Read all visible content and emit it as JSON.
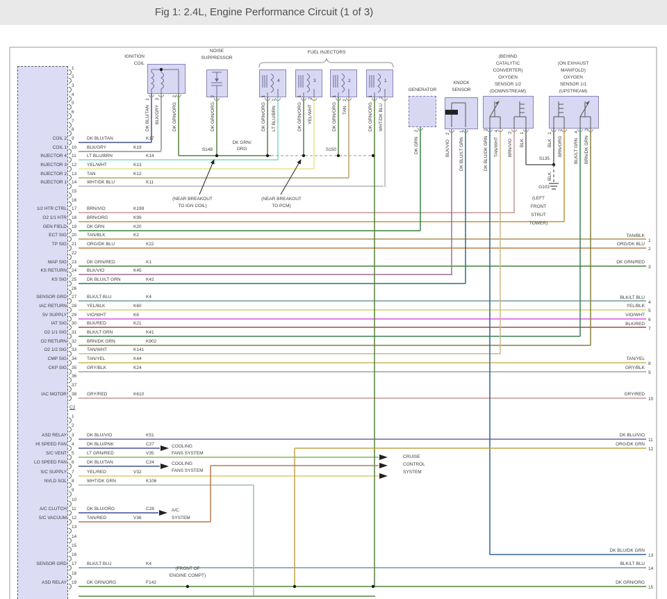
{
  "header": {
    "title": "Fig 1: 2.4L, Engine Performance Circuit (1 of 3)"
  },
  "colors": {
    "DK BLU/TAN": "#44518a",
    "BLK/GRY": "#8c8c8c",
    "DK GRN/ORG": "#56813c",
    "LT BLU/BRN": "#82d7c9",
    "YEL/WHT": "#e8e492",
    "TAN": "#b99f66",
    "WHT/DK BLU": "#b4b4bc",
    "BRN/VIO": "#c39a95",
    "BRN/ORG": "#c6923c",
    "DK GRN": "#35823c",
    "TAN/BLK": "#ab9156",
    "ORG/DK BLU": "#bc7e47",
    "DK GRN/RED": "#46813f",
    "BLK/VIO": "#9e6d9a",
    "DK BLU/LT GRN": "#2d6f7a",
    "BLK/LT BLU": "#7097a3",
    "YEL/BLK": "#d9d268",
    "VIO/WHT": "#e44fe0",
    "BLK/RED": "#a34545",
    "BLK/LT GRN": "#3d7d57",
    "BRN/DK GRN": "#80803a",
    "TAN/WHT": "#c9b88d",
    "TAN/YEL": "#c6b657",
    "GRY/BLK": "#a0a0a0",
    "GRY/RED": "#c69595",
    "DK BLU/VIO": "#7461a8",
    "DK BLU/PNK": "#4d4f96",
    "LT GRN/RED": "#7cbb5c",
    "YEL/RED": "#ddcb6d",
    "WHT/DK GRN": "#a2b8a8",
    "DK BLU/ORG": "#3f4a93",
    "TAN/RED": "#b57a50",
    "ORG/DK GRN": "#bda345",
    "DK BLU/DK GRN": "#33608f",
    "BLK": "#606060",
    "bus_dash": "#a8a8a8",
    "structure": "#888888",
    "symbol": "#6a6a94"
  },
  "components": {
    "ignition_coil": {
      "label_lines": [
        "IGNITION",
        "COIL"
      ],
      "wires": [
        {
          "color": "DK BLU/TAN",
          "pin": "1"
        },
        {
          "color": "BLK/GRY",
          "pin": "3"
        },
        {
          "color": "DK GRN/ORG",
          "pin": "2"
        }
      ]
    },
    "noise_suppressor": {
      "label_lines": [
        "NOISE",
        "SUPPRESSOR"
      ],
      "wires": [
        {
          "color": "DK GRN/ORG",
          "pin": "2"
        }
      ]
    },
    "fuel_injectors": {
      "group_label": "FUEL INJECTORS",
      "items": [
        {
          "number": "4",
          "wires": [
            {
              "color": "DK GRN/ORG",
              "pin": "1"
            },
            {
              "color": "LT BLU/BRN",
              "pin": "2"
            }
          ]
        },
        {
          "number": "3",
          "wires": [
            {
              "color": "DK GRN/ORG",
              "pin": "1"
            },
            {
              "color": "YEL/WHT",
              "pin": "2"
            }
          ]
        },
        {
          "number": "2",
          "wires": [
            {
              "color": "DK GRN/ORG",
              "pin": "1"
            },
            {
              "color": "TAN",
              "pin": "2"
            }
          ]
        },
        {
          "number": "1",
          "wires": [
            {
              "color": "DK GRN/ORG",
              "pin": "1"
            },
            {
              "color": "WHT/DK BLU",
              "pin": "2"
            }
          ]
        }
      ]
    },
    "generator": {
      "label_lines": [
        "GENERATOR"
      ],
      "wires": [
        {
          "color": "DK GRN",
          "pin": "2"
        }
      ]
    },
    "knock_sensor": {
      "label_lines": [
        "KNOCK",
        "SENSOR"
      ],
      "wires": [
        {
          "color": "BLK/VIO",
          "pin": "2"
        },
        {
          "color": "DK BLU/LT GRN",
          "pin": "1"
        }
      ]
    },
    "o2_downstream": {
      "label_lines": [
        "(BEHIND",
        "CATALYTIC",
        "CONVERTER)",
        "OXYGEN",
        "SENSOR 1/2",
        "(DOWNSTREAM)"
      ],
      "wires": [
        {
          "color": "DK BLU/DK GRN",
          "pin": "3"
        },
        {
          "color": "TAN/WHT",
          "pin": "4"
        },
        {
          "color": "BRN/VIO",
          "pin": "2"
        },
        {
          "color": "BLK",
          "pin": "1"
        }
      ]
    },
    "o2_upstream": {
      "label_lines": [
        "(ON EXHAUST",
        "MANIFOLD)",
        "OXYGEN",
        "SENSOR 1/1",
        "(UPSTREAM)"
      ],
      "wires": [
        {
          "color": "BLK",
          "pin": "1"
        },
        {
          "color": "BRN/ORG",
          "pin": "2"
        },
        {
          "color": "BLK/LT GRN",
          "pin": "4"
        },
        {
          "color": "BRN/DK GRN",
          "pin": "3"
        }
      ]
    }
  },
  "pcm": {
    "c2_label": "C2",
    "c1_pins": [
      {
        "n": "1"
      },
      {
        "n": "2"
      },
      {
        "n": "3"
      },
      {
        "n": "4"
      },
      {
        "n": "5"
      },
      {
        "n": "6"
      },
      {
        "n": "7"
      },
      {
        "n": "8"
      },
      {
        "n": "9",
        "name": "COIL 2",
        "color": "DK BLU/TAN",
        "circuit": "K17"
      },
      {
        "n": "10",
        "name": "COIL 1",
        "color": "BLK/GRY",
        "circuit": "K19"
      },
      {
        "n": "11",
        "name": "INJECTOR 4",
        "color": "LT BLU/BRN",
        "circuit": "K14"
      },
      {
        "n": "12",
        "name": "INJECTOR 3",
        "color": "YEL/WHT",
        "circuit": "K13"
      },
      {
        "n": "13",
        "name": "INJECTOR 2",
        "color": "TAN",
        "circuit": "K12"
      },
      {
        "n": "14",
        "name": "INJECTOR 1",
        "color": "WHT/DK BLU",
        "circuit": "K11"
      },
      {
        "n": "15"
      },
      {
        "n": "16"
      },
      {
        "n": "17",
        "name": "1/2 HTR CTRL",
        "color": "BRN/VIO",
        "circuit": "K199"
      },
      {
        "n": "18",
        "name": "O2 1/1 HTR",
        "color": "BRN/ORG",
        "circuit": "K99"
      },
      {
        "n": "19",
        "name": "GEN FIELD",
        "color": "DK GRN",
        "circuit": "K20"
      },
      {
        "n": "20",
        "name": "ECT SIG",
        "color": "TAN/BLK",
        "circuit": "K2"
      },
      {
        "n": "21",
        "name": "TP SIG",
        "color": "ORG/DK BLU",
        "circuit": "K22"
      },
      {
        "n": "22"
      },
      {
        "n": "23",
        "name": "MAP SIG",
        "color": "DK GRN/RED",
        "circuit": "K1"
      },
      {
        "n": "24",
        "name": "KS RETURN",
        "color": "BLK/VIO",
        "circuit": "K45"
      },
      {
        "n": "25",
        "name": "KS SIG",
        "color": "DK BLU/LT GRN",
        "circuit": "K42"
      },
      {
        "n": "26"
      },
      {
        "n": "27",
        "name": "SENSOR GRD",
        "color": "BLK/LT BLU",
        "circuit": "K4"
      },
      {
        "n": "28",
        "name": "IAC RETURN",
        "color": "YEL/BLK",
        "circuit": "K60"
      },
      {
        "n": "29",
        "name": "5V SUPPLY",
        "color": "VIO/WHT",
        "circuit": "K6"
      },
      {
        "n": "30",
        "name": "IAT SIG",
        "color": "BLK/RED",
        "circuit": "K21"
      },
      {
        "n": "31",
        "name": "O2 1/1 SIG",
        "color": "BLK/LT GRN",
        "circuit": "K41"
      },
      {
        "n": "32",
        "name": "O2 RETURN",
        "color": "BRN/DK GRN",
        "circuit": "K902"
      },
      {
        "n": "33",
        "name": "O2 1/2 SIG",
        "color": "TAN/WHT",
        "circuit": "K141"
      },
      {
        "n": "34",
        "name": "CMP SIG",
        "color": "TAN/YEL",
        "circuit": "K44"
      },
      {
        "n": "35",
        "name": "CKP SIG",
        "color": "GRY/BLK",
        "circuit": "K24"
      },
      {
        "n": "36"
      },
      {
        "n": "37"
      },
      {
        "n": "38",
        "name": "IAC MOTOR",
        "color": "GRY/RED",
        "circuit": "K610"
      }
    ],
    "c2_pins": [
      {
        "n": "1"
      },
      {
        "n": "2"
      },
      {
        "n": "3",
        "name": "ASD RELAY",
        "color": "DK BLU/VIO",
        "circuit": "K51"
      },
      {
        "n": "4",
        "name": "HI SPEED FAN",
        "color": "DK BLU/PNK",
        "circuit": "C27"
      },
      {
        "n": "5",
        "name": "S/C VENT",
        "color": "LT GRN/RED",
        "circuit": "V35"
      },
      {
        "n": "6",
        "name": "LO SPEED FAN",
        "color": "DK BLU/TAN",
        "circuit": "C24"
      },
      {
        "n": "7",
        "name": "S/C SUPPLY",
        "color": "YEL/RED",
        "circuit": "V32"
      },
      {
        "n": "8",
        "name": "NVLD SOL",
        "color": "WHT/DK GRN",
        "circuit": "K106"
      },
      {
        "n": "9"
      },
      {
        "n": "10"
      },
      {
        "n": "11",
        "name": "A/C CLUTCH",
        "color": "DK BLU/ORG",
        "circuit": "C28"
      },
      {
        "n": "12",
        "name": "S/C VACUUM",
        "color": "TAN/RED",
        "circuit": "V36"
      },
      {
        "n": "13"
      },
      {
        "n": "14"
      },
      {
        "n": "15"
      },
      {
        "n": "16"
      },
      {
        "n": "17",
        "name": "SENSOR GRD",
        "color": "BLK/LT BLU",
        "circuit": "K4"
      },
      {
        "n": "18"
      },
      {
        "n": "19",
        "name": "ASD RELAY",
        "color": "DK GRN/ORG",
        "circuit": "F142"
      }
    ]
  },
  "splices": {
    "s148": "S148",
    "s150": "S150",
    "s135": "S135"
  },
  "bus_label_lines": [
    "DK GRN/",
    "ORG"
  ],
  "ground": {
    "id": "G103",
    "wire": "BLK",
    "location_lines": [
      "(LEFT",
      "FRONT",
      "STRUT",
      "TOWER)"
    ]
  },
  "notes": {
    "ign_coil_lines": [
      "(NEAR BREAKOUT",
      "TO IGN COIL)"
    ],
    "pcm_lines": [
      "(NEAR BREAKOUT",
      "TO PCM)"
    ],
    "engine_compt_lines": [
      "(FRONT OF",
      "ENGINE COMPT)"
    ]
  },
  "systems": {
    "cooling_lines": [
      "COOLING",
      "FANS SYSTEM"
    ],
    "cruise_lines": [
      "CRUISE",
      "CONTROL",
      "SYSTEM"
    ],
    "ac_lines": [
      "A/C",
      "SYSTEM"
    ]
  },
  "right_edge": [
    {
      "n": "1",
      "color": "TAN/BLK"
    },
    {
      "n": "2",
      "color": "ORG/DK BLU"
    },
    {
      "n": "3",
      "color": "DK GRN/RED"
    },
    {
      "n": "4",
      "color": "BLK/LT BLU"
    },
    {
      "n": "5",
      "color": "YEL/BLK"
    },
    {
      "n": "6",
      "color": "VIO/WHT"
    },
    {
      "n": "7",
      "color": "BLK/RED"
    },
    {
      "n": "8",
      "color": "TAN/YEL"
    },
    {
      "n": "9",
      "color": "GRY/BLK"
    },
    {
      "n": "10",
      "color": "GRY/RED"
    },
    {
      "n": "11",
      "color": "DK BLU/VIO"
    },
    {
      "n": "12",
      "color": "ORG/DK GRN"
    },
    {
      "n": "13",
      "color": "DK BLU/DK GRN"
    },
    {
      "n": "14",
      "color": "BLK/LT BLU"
    },
    {
      "n": "15",
      "color": "DK GRN/ORG"
    }
  ]
}
